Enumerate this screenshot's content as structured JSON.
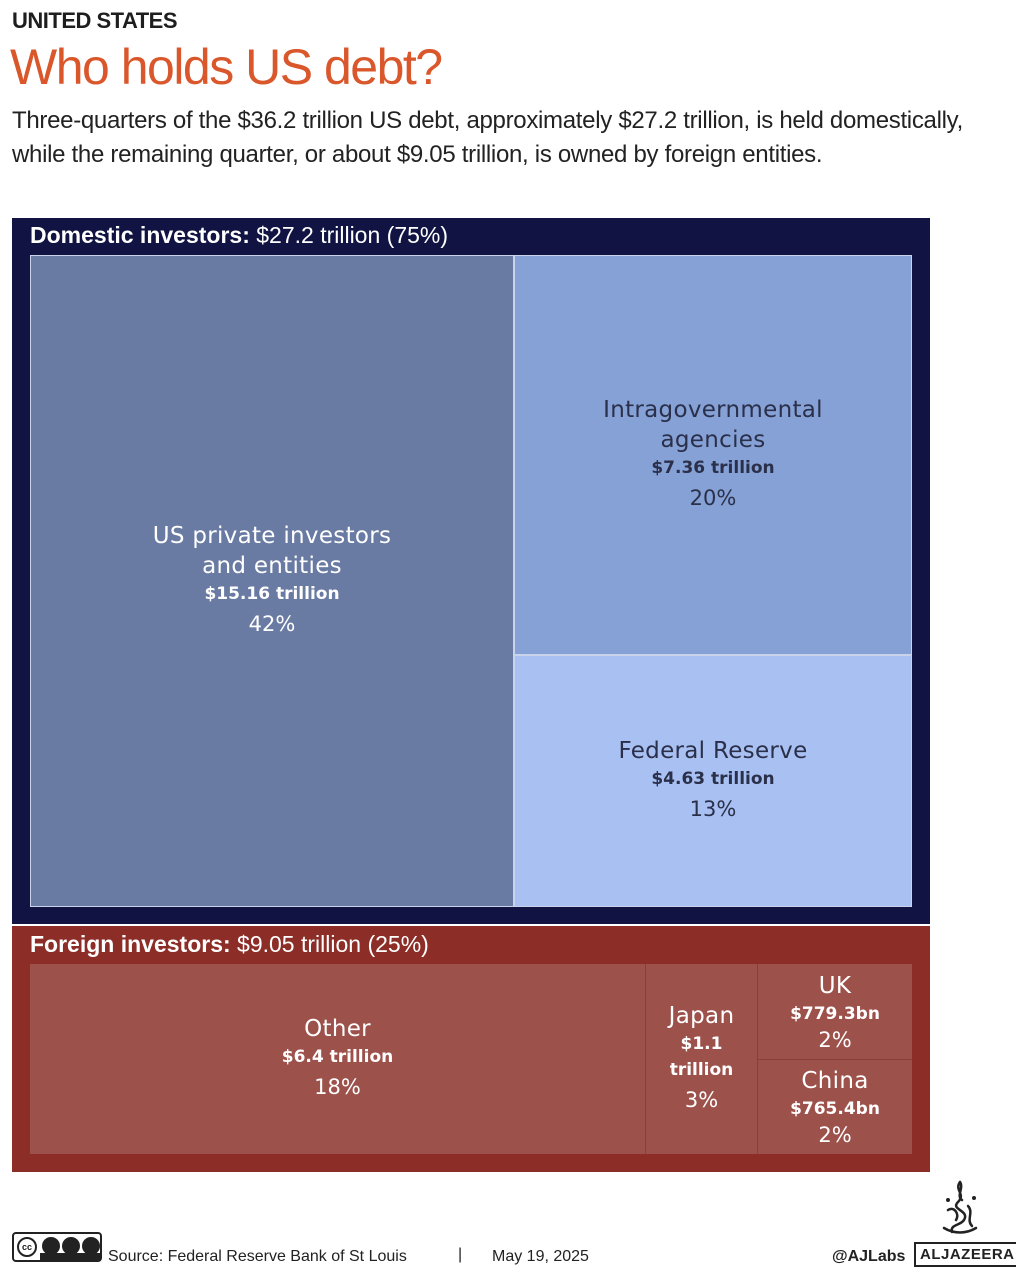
{
  "header": {
    "kicker": "UNITED STATES",
    "title": "Who holds US debt?",
    "subtitle": "Three-quarters of the $36.2 trillion US debt, approximately $27.2 trillion, is held domestically, while the remaining quarter, or about $9.05 trillion, is owned by foreign entities."
  },
  "chart_data": {
    "type": "treemap",
    "total_trillion": 36.2,
    "groups": [
      {
        "key": "domestic",
        "label": "Domestic investors:",
        "amount_text": "$27.2 trillion (75%)",
        "value_trillion": 27.2,
        "percent": 75,
        "color": "#111443",
        "items": [
          {
            "name_lines": [
              "US private investors",
              "and entities"
            ],
            "amount": "$15.16 trillion",
            "value_trillion": 15.16,
            "percent": 42,
            "percent_text": "42%",
            "color": "#6a7ba3"
          },
          {
            "name_lines": [
              "Intragovernmental",
              "agencies"
            ],
            "amount": "$7.36 trillion",
            "value_trillion": 7.36,
            "percent": 20,
            "percent_text": "20%",
            "color": "#86a1d6"
          },
          {
            "name_lines": [
              "Federal Reserve"
            ],
            "amount": "$4.63 trillion",
            "value_trillion": 4.63,
            "percent": 13,
            "percent_text": "13%",
            "color": "#a9c0f2"
          }
        ]
      },
      {
        "key": "foreign",
        "label": "Foreign investors:",
        "amount_text": "$9.05 trillion (25%)",
        "value_trillion": 9.05,
        "percent": 25,
        "color": "#8c2e27",
        "items": [
          {
            "name_lines": [
              "Other"
            ],
            "amount": "$6.4 trillion",
            "value_trillion": 6.4,
            "percent": 18,
            "percent_text": "18%",
            "color": "#9c514b"
          },
          {
            "name_lines": [
              "Japan"
            ],
            "amount": "$1.1 trillion",
            "value_trillion": 1.1,
            "percent": 3,
            "percent_text": "3%",
            "color": "#9c514b"
          },
          {
            "name_lines": [
              "UK"
            ],
            "amount": "$779.3bn",
            "value_billion": 779.3,
            "percent": 2,
            "percent_text": "2%",
            "color": "#9c514b"
          },
          {
            "name_lines": [
              "China"
            ],
            "amount": "$765.4bn",
            "value_billion": 765.4,
            "percent": 2,
            "percent_text": "2%",
            "color": "#9c514b"
          }
        ]
      }
    ]
  },
  "footer": {
    "license_icon": "creative-commons-by-nc-sa-icon",
    "license_text": "cc",
    "source": "Source:  Federal Reserve Bank of St Louis",
    "separator": "|",
    "date": "May 19, 2025",
    "handle": "@AJLabs",
    "logo_text": "ALJAZEERA",
    "logo_icon": "al-jazeera-calligraphy-logo-icon"
  }
}
